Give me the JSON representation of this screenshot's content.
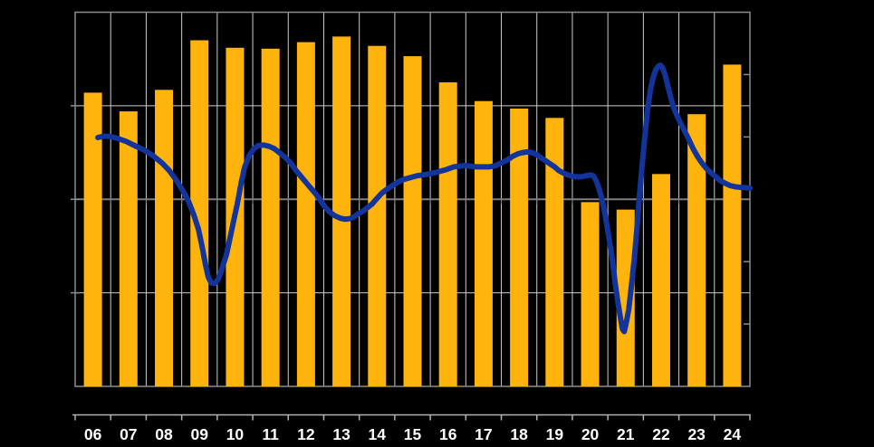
{
  "chart_data": {
    "type": "combo",
    "title": "",
    "categories": [
      "06",
      "07",
      "08",
      "09",
      "10",
      "11",
      "12",
      "13",
      "14",
      "15",
      "16",
      "17",
      "18",
      "19",
      "20",
      "21",
      "22",
      "23",
      "24"
    ],
    "left_axis": {
      "min": 0,
      "max": 4,
      "tick_interval": 1,
      "labels_visible": false
    },
    "right_axis": {
      "min": -3,
      "max": 3,
      "tick_interval": 1,
      "zero_line": true,
      "labels_visible": false
    },
    "grid": {
      "vertical": "every-category-boundary",
      "horizontal_light_at_left_units": [
        1,
        3
      ],
      "dark_zero_line": true
    },
    "legend": "none",
    "series": [
      {
        "name": "bars",
        "type": "bar",
        "axis": "left",
        "values": [
          3.14,
          2.94,
          3.17,
          3.7,
          3.62,
          3.61,
          3.68,
          3.74,
          3.64,
          3.53,
          3.25,
          3.05,
          2.97,
          2.87,
          1.97,
          1.89,
          2.27,
          2.91,
          3.44
        ]
      },
      {
        "name": "line",
        "type": "line",
        "axis": "right",
        "points": [
          [
            0.64,
            0.99
          ],
          [
            0.79,
            1.01
          ],
          [
            0.97,
            1.01
          ],
          [
            1.17,
            0.98
          ],
          [
            1.43,
            0.93
          ],
          [
            1.68,
            0.86
          ],
          [
            1.94,
            0.79
          ],
          [
            2.19,
            0.7
          ],
          [
            2.45,
            0.58
          ],
          [
            2.65,
            0.46
          ],
          [
            2.83,
            0.32
          ],
          [
            3.01,
            0.16
          ],
          [
            3.19,
            -0.03
          ],
          [
            3.34,
            -0.25
          ],
          [
            3.47,
            -0.48
          ],
          [
            3.57,
            -0.75
          ],
          [
            3.67,
            -1.05
          ],
          [
            3.75,
            -1.25
          ],
          [
            3.83,
            -1.34
          ],
          [
            3.93,
            -1.35
          ],
          [
            4.03,
            -1.28
          ],
          [
            4.13,
            -1.12
          ],
          [
            4.26,
            -0.89
          ],
          [
            4.36,
            -0.62
          ],
          [
            4.46,
            -0.35
          ],
          [
            4.57,
            -0.06
          ],
          [
            4.67,
            0.25
          ],
          [
            4.77,
            0.51
          ],
          [
            4.9,
            0.7
          ],
          [
            5.03,
            0.81
          ],
          [
            5.15,
            0.86
          ],
          [
            5.31,
            0.87
          ],
          [
            5.46,
            0.85
          ],
          [
            5.61,
            0.81
          ],
          [
            5.77,
            0.74
          ],
          [
            5.92,
            0.67
          ],
          [
            6.07,
            0.58
          ],
          [
            6.22,
            0.46
          ],
          [
            6.38,
            0.35
          ],
          [
            6.53,
            0.25
          ],
          [
            6.68,
            0.15
          ],
          [
            6.84,
            0.04
          ],
          [
            6.99,
            -0.09
          ],
          [
            7.14,
            -0.19
          ],
          [
            7.3,
            -0.26
          ],
          [
            7.45,
            -0.3
          ],
          [
            7.6,
            -0.32
          ],
          [
            7.73,
            -0.31
          ],
          [
            7.86,
            -0.28
          ],
          [
            7.98,
            -0.23
          ],
          [
            8.11,
            -0.19
          ],
          [
            8.24,
            -0.13
          ],
          [
            8.37,
            -0.07
          ],
          [
            8.49,
            0.01
          ],
          [
            8.62,
            0.09
          ],
          [
            8.75,
            0.15
          ],
          [
            8.88,
            0.2
          ],
          [
            9.01,
            0.25
          ],
          [
            9.13,
            0.29
          ],
          [
            9.26,
            0.32
          ],
          [
            9.39,
            0.34
          ],
          [
            9.52,
            0.36
          ],
          [
            9.64,
            0.38
          ],
          [
            9.9,
            0.4
          ],
          [
            10.15,
            0.43
          ],
          [
            10.41,
            0.47
          ],
          [
            10.66,
            0.52
          ],
          [
            10.97,
            0.54
          ],
          [
            11.3,
            0.52
          ],
          [
            11.66,
            0.52
          ],
          [
            11.84,
            0.54
          ],
          [
            12.02,
            0.59
          ],
          [
            12.17,
            0.63
          ],
          [
            12.32,
            0.69
          ],
          [
            12.47,
            0.73
          ],
          [
            12.6,
            0.75
          ],
          [
            12.73,
            0.76
          ],
          [
            12.86,
            0.75
          ],
          [
            12.99,
            0.72
          ],
          [
            13.11,
            0.67
          ],
          [
            13.24,
            0.62
          ],
          [
            13.37,
            0.57
          ],
          [
            13.5,
            0.52
          ],
          [
            13.62,
            0.46
          ],
          [
            13.75,
            0.42
          ],
          [
            13.88,
            0.39
          ],
          [
            14.01,
            0.37
          ],
          [
            14.13,
            0.36
          ],
          [
            14.26,
            0.36
          ],
          [
            14.39,
            0.38
          ],
          [
            14.52,
            0.39
          ],
          [
            14.59,
            0.38
          ],
          [
            14.67,
            0.3
          ],
          [
            14.74,
            0.19
          ],
          [
            14.82,
            0.03
          ],
          [
            14.9,
            -0.17
          ],
          [
            14.97,
            -0.41
          ],
          [
            15.05,
            -0.68
          ],
          [
            15.13,
            -0.99
          ],
          [
            15.2,
            -1.32
          ],
          [
            15.28,
            -1.64
          ],
          [
            15.36,
            -1.92
          ],
          [
            15.41,
            -2.08
          ],
          [
            15.46,
            -2.12
          ],
          [
            15.51,
            -2.0
          ],
          [
            15.59,
            -1.76
          ],
          [
            15.66,
            -1.41
          ],
          [
            15.74,
            -0.97
          ],
          [
            15.82,
            -0.46
          ],
          [
            15.89,
            0.07
          ],
          [
            15.97,
            0.58
          ],
          [
            16.05,
            1.05
          ],
          [
            16.12,
            1.45
          ],
          [
            16.2,
            1.76
          ],
          [
            16.28,
            1.96
          ],
          [
            16.35,
            2.08
          ],
          [
            16.43,
            2.14
          ],
          [
            16.48,
            2.15
          ],
          [
            16.53,
            2.12
          ],
          [
            16.61,
            2.0
          ],
          [
            16.68,
            1.84
          ],
          [
            16.76,
            1.65
          ],
          [
            16.84,
            1.49
          ],
          [
            16.94,
            1.35
          ],
          [
            17.04,
            1.23
          ],
          [
            17.14,
            1.12
          ],
          [
            17.27,
            0.97
          ],
          [
            17.4,
            0.81
          ],
          [
            17.53,
            0.68
          ],
          [
            17.65,
            0.58
          ],
          [
            17.78,
            0.49
          ],
          [
            17.91,
            0.42
          ],
          [
            18.04,
            0.36
          ],
          [
            18.16,
            0.3
          ],
          [
            18.29,
            0.26
          ],
          [
            18.44,
            0.22
          ],
          [
            18.6,
            0.2
          ],
          [
            18.78,
            0.19
          ],
          [
            19.0,
            0.18
          ]
        ]
      }
    ],
    "colors": {
      "background": "#000000",
      "bar": "#FFB30D",
      "line": "#13349B",
      "grid_light": "#CCCCCC",
      "grid_dark": "#7F7F7F",
      "frame": "#8C8C8C",
      "bottom_axis": "#B3B3B3",
      "label_text": "#FFFFFF"
    }
  }
}
